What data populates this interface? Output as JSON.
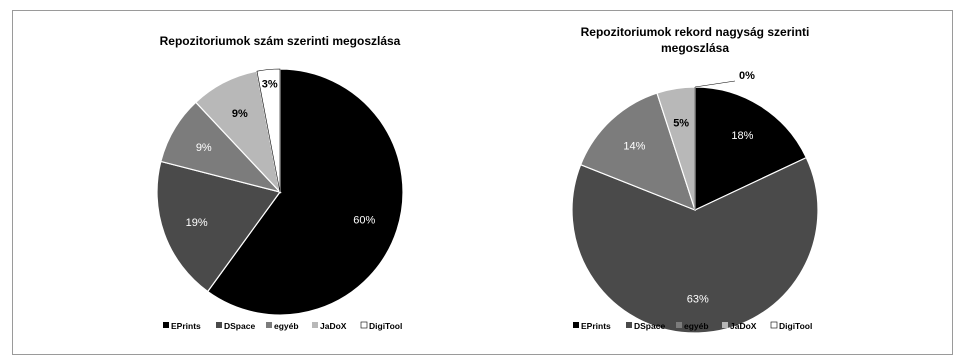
{
  "chart_data": [
    {
      "type": "pie",
      "title": "Repozitoriumok szám szerinti megoszlása",
      "categories": [
        "EPrints",
        "DSpace",
        "egyéb",
        "JaDoX",
        "DigiTool"
      ],
      "values": [
        60,
        19,
        9,
        9,
        3
      ],
      "labels": [
        "60%",
        "19%",
        "9%",
        "9%",
        "3%"
      ],
      "colors": [
        "#000000",
        "#4a4a4a",
        "#7c7c7c",
        "#b8b8b8",
        "#ffffff"
      ],
      "legend_position": "bottom"
    },
    {
      "type": "pie",
      "title": "Repozitoriumok rekord nagyság szerinti megoszlása",
      "categories": [
        "EPrints",
        "DSpace",
        "egyéb",
        "JaDoX",
        "DigiTool"
      ],
      "values": [
        18,
        63,
        14,
        5,
        0
      ],
      "labels": [
        "18%",
        "63%",
        "14%",
        "5%",
        "0%"
      ],
      "colors": [
        "#000000",
        "#4a4a4a",
        "#7c7c7c",
        "#b8b8b8",
        "#ffffff"
      ],
      "legend_position": "bottom"
    }
  ]
}
